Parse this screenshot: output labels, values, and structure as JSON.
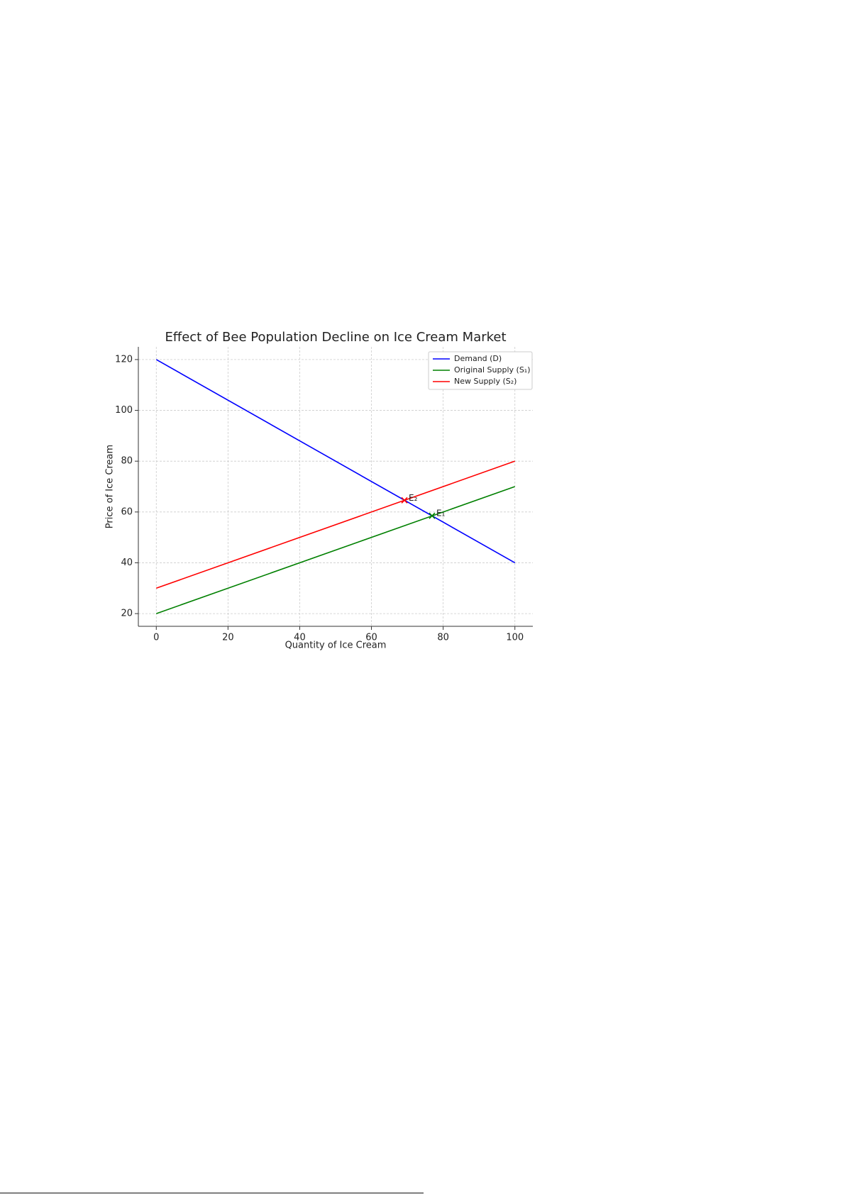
{
  "chart_data": {
    "type": "line",
    "title": "Effect of Bee Population Decline on Ice Cream Market",
    "x_label": "Quantity of Ice Cream",
    "y_label": "Price of Ice Cream",
    "x": [
      0,
      100
    ],
    "series": [
      {
        "name": "Demand (D)",
        "color": "#0000ff",
        "values": [
          120,
          40
        ]
      },
      {
        "name": "Original Supply (S₁)",
        "color": "#008000",
        "values": [
          20,
          70
        ]
      },
      {
        "name": "New Supply (S₂)",
        "color": "#ff0000",
        "values": [
          30,
          80
        ]
      }
    ],
    "points": [
      {
        "label": "E₁",
        "x": 76.9,
        "y": 58.5,
        "color": "#008000"
      },
      {
        "label": "E₂",
        "x": 69.2,
        "y": 64.6,
        "color": "#ff0000"
      }
    ],
    "xlim": [
      -5,
      105
    ],
    "ylim": [
      15,
      125
    ],
    "xticks": [
      0,
      20,
      40,
      60,
      80,
      100
    ],
    "yticks": [
      20,
      40,
      60,
      80,
      100,
      120
    ],
    "grid": true,
    "legend": "upper right"
  }
}
